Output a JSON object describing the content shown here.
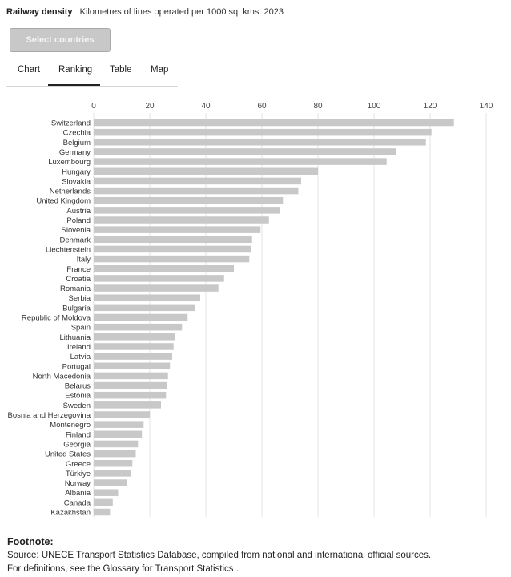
{
  "header": {
    "title": "Railway density",
    "subtitle": "Kilometres of lines operated per 1000 sq. kms. 2023"
  },
  "select_button": {
    "label": "Select countries"
  },
  "tabs": [
    {
      "label": "Chart"
    },
    {
      "label": "Ranking",
      "active": true
    },
    {
      "label": "Table"
    },
    {
      "label": "Map"
    }
  ],
  "chart_data": {
    "type": "bar",
    "orientation": "horizontal",
    "title": "",
    "xlabel": "",
    "ylabel": "",
    "xlim": [
      0,
      140
    ],
    "xticks": [
      0,
      20,
      40,
      60,
      80,
      100,
      120,
      140
    ],
    "grid": true,
    "bar_color": "#c8c8c8",
    "categories": [
      "Switzerland",
      "Czechia",
      "Belgium",
      "Germany",
      "Luxembourg",
      "Hungary",
      "Slovakia",
      "Netherlands",
      "United Kingdom",
      "Austria",
      "Poland",
      "Slovenia",
      "Denmark",
      "Liechtenstein",
      "Italy",
      "France",
      "Croatia",
      "Romania",
      "Serbia",
      "Bulgaria",
      "Republic of Moldova",
      "Spain",
      "Lithuania",
      "Ireland",
      "Latvia",
      "Portugal",
      "North Macedonia",
      "Belarus",
      "Estonia",
      "Sweden",
      "Bosnia and Herzegovina",
      "Montenegro",
      "Finland",
      "Georgia",
      "United States",
      "Greece",
      "Türkiye",
      "Norway",
      "Albania",
      "Canada",
      "Kazakhstan"
    ],
    "values": [
      128.5,
      120.5,
      118.5,
      108,
      104.5,
      80,
      74,
      73,
      67.5,
      66.5,
      62.5,
      59.5,
      56.5,
      56,
      55.5,
      50,
      46.5,
      44.5,
      38,
      36,
      33.5,
      31.5,
      29,
      28.5,
      28,
      27.2,
      26.5,
      26,
      25.8,
      24,
      20,
      17.8,
      17.2,
      15.8,
      15,
      13.8,
      13.3,
      12,
      8.7,
      6.8,
      5.8
    ]
  },
  "footnote": {
    "title": "Footnote:",
    "source": "Source: UNECE Transport Statistics Database, compiled from national and international official sources.",
    "definitions": "For definitions, see  the Glossary for Transport Statistics ."
  }
}
